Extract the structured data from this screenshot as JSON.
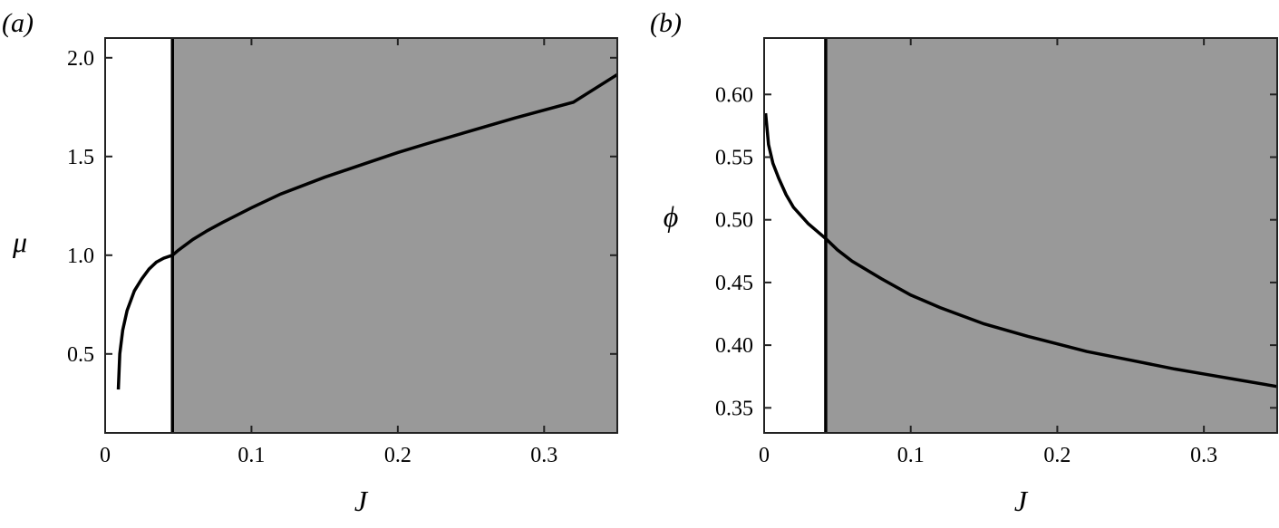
{
  "chart_data": [
    {
      "panel_label": "(a)",
      "type": "line",
      "xlabel": "J",
      "ylabel": "μ",
      "xlim": [
        0,
        0.35
      ],
      "ylim": [
        0.1,
        2.1
      ],
      "xticks": [
        0,
        0.1,
        0.2,
        0.3
      ],
      "xtick_labels": [
        "0",
        "0.1",
        "0.2",
        "0.3"
      ],
      "yticks": [
        0.5,
        1.0,
        1.5,
        2.0
      ],
      "ytick_labels": [
        "0.5",
        "1.0",
        "1.5",
        "2.0"
      ],
      "grid": false,
      "shaded_region": {
        "x_from": 0.046,
        "x_to": 0.35,
        "color": "#999999"
      },
      "vertical_line_x": 0.046,
      "curve_color": "#000000",
      "series": [
        {
          "x": [
            0.009,
            0.01,
            0.012,
            0.015,
            0.02,
            0.025,
            0.03,
            0.035,
            0.04,
            0.046,
            0.05,
            0.06,
            0.07,
            0.08,
            0.1,
            0.12,
            0.15,
            0.18,
            0.2,
            0.22,
            0.25,
            0.28,
            0.3,
            0.32,
            0.35
          ],
          "y": [
            0.32,
            0.5,
            0.62,
            0.72,
            0.82,
            0.88,
            0.93,
            0.965,
            0.985,
            1.0,
            1.025,
            1.08,
            1.125,
            1.165,
            1.24,
            1.31,
            1.395,
            1.47,
            1.52,
            1.565,
            1.63,
            1.695,
            1.735,
            1.775,
            1.915
          ]
        }
      ]
    },
    {
      "panel_label": "(b)",
      "type": "line",
      "xlabel": "J",
      "ylabel": "ϕ",
      "xlim": [
        0,
        0.35
      ],
      "ylim": [
        0.33,
        0.645
      ],
      "xticks": [
        0,
        0.1,
        0.2,
        0.3
      ],
      "xtick_labels": [
        "0",
        "0.1",
        "0.2",
        "0.3"
      ],
      "yticks": [
        0.35,
        0.4,
        0.45,
        0.5,
        0.55,
        0.6
      ],
      "ytick_labels": [
        "0.35",
        "0.40",
        "0.45",
        "0.50",
        "0.55",
        "0.60"
      ],
      "grid": false,
      "shaded_region": {
        "x_from": 0.042,
        "x_to": 0.35,
        "color": "#999999"
      },
      "vertical_line_x": 0.042,
      "curve_color": "#000000",
      "series": [
        {
          "x": [
            0.001,
            0.003,
            0.006,
            0.01,
            0.015,
            0.02,
            0.03,
            0.042,
            0.05,
            0.06,
            0.08,
            0.1,
            0.12,
            0.15,
            0.18,
            0.2,
            0.22,
            0.25,
            0.28,
            0.3,
            0.32,
            0.35
          ],
          "y": [
            0.585,
            0.56,
            0.545,
            0.533,
            0.52,
            0.51,
            0.497,
            0.485,
            0.476,
            0.467,
            0.453,
            0.44,
            0.43,
            0.417,
            0.407,
            0.401,
            0.395,
            0.388,
            0.381,
            0.377,
            0.373,
            0.367
          ]
        }
      ]
    }
  ]
}
